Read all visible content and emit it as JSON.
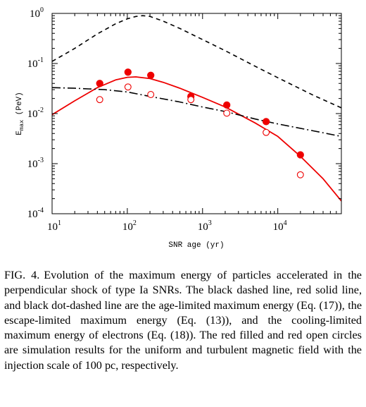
{
  "chart_data": {
    "type": "line",
    "title": "",
    "xlabel": "SNR age (yr)",
    "ylabel": "E_max (PeV)",
    "xscale": "log",
    "yscale": "log",
    "xlim": [
      10,
      70000
    ],
    "ylim": [
      0.0001,
      1
    ],
    "grid": false,
    "legend": "none",
    "xticks": [
      {
        "value": 10,
        "base": "10",
        "exp": "1"
      },
      {
        "value": 100,
        "base": "10",
        "exp": "2"
      },
      {
        "value": 1000,
        "base": "10",
        "exp": "3"
      },
      {
        "value": 10000,
        "base": "10",
        "exp": "4"
      }
    ],
    "yticks": [
      {
        "value": 1,
        "base": "10",
        "exp": "0"
      },
      {
        "value": 0.1,
        "base": "10",
        "exp": "-1"
      },
      {
        "value": 0.01,
        "base": "10",
        "exp": "-2"
      },
      {
        "value": 0.001,
        "base": "10",
        "exp": "-3"
      },
      {
        "value": 0.0001,
        "base": "10",
        "exp": "-4"
      }
    ],
    "series": [
      {
        "style": "dashed",
        "color": "#000000",
        "x": [
          10,
          20,
          40,
          70,
          100,
          130,
          160,
          200,
          300,
          500,
          1000,
          2000,
          5000,
          10000,
          30000,
          70000
        ],
        "y": [
          0.11,
          0.2,
          0.39,
          0.62,
          0.78,
          0.87,
          0.9,
          0.87,
          0.7,
          0.5,
          0.3,
          0.18,
          0.088,
          0.052,
          0.023,
          0.013
        ]
      },
      {
        "style": "solid",
        "color": "#ee0000",
        "x": [
          10,
          20,
          40,
          70,
          100,
          130,
          200,
          300,
          500,
          1000,
          2000,
          5000,
          10000,
          20000,
          40000,
          70000
        ],
        "y": [
          0.0095,
          0.018,
          0.033,
          0.047,
          0.053,
          0.054,
          0.05,
          0.042,
          0.032,
          0.021,
          0.0135,
          0.0065,
          0.0035,
          0.0014,
          0.0005,
          0.00018
        ]
      },
      {
        "style": "dash-dot",
        "color": "#000000",
        "x": [
          10,
          20,
          50,
          100,
          200,
          500,
          1000,
          2000,
          5000,
          10000,
          30000,
          70000
        ],
        "y": [
          0.033,
          0.032,
          0.03,
          0.027,
          0.022,
          0.017,
          0.0135,
          0.011,
          0.0078,
          0.0062,
          0.0045,
          0.0035
        ]
      }
    ],
    "points": [
      {
        "style": "filled",
        "color": "#ee0000",
        "x": [
          43,
          102,
          205,
          700,
          2100,
          7000,
          20000
        ],
        "y": [
          0.04,
          0.067,
          0.058,
          0.022,
          0.0148,
          0.0069,
          0.0015
        ]
      },
      {
        "style": "open",
        "color": "#ee0000",
        "x": [
          43,
          102,
          205,
          700,
          2100,
          7000,
          20000
        ],
        "y": [
          0.019,
          0.034,
          0.024,
          0.019,
          0.0102,
          0.0042,
          0.0006
        ]
      }
    ]
  },
  "caption": {
    "label": "FIG. 4.",
    "text": "Evolution of the maximum energy of particles accelerated in the perpendicular shock of type Ia SNRs. The black dashed line, red solid line, and black dot-dashed line are the age-limited maximum energy (Eq. (17)), the escape-limited maximum energy (Eq. (13)), and the cooling-limited maximum energy of electrons (Eq. (18)). The red filled and red open circles are simulation results for the uniform and turbulent magnetic field with the injection scale of 100 pc, respectively."
  }
}
